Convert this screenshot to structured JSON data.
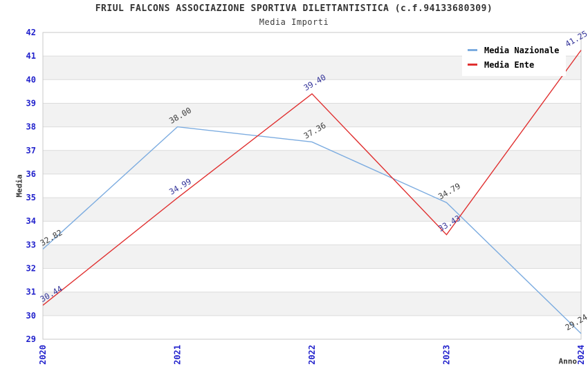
{
  "chart_data": {
    "type": "line",
    "title": "FRIUL FALCONS ASSOCIAZIONE SPORTIVA DILETTANTISTICA (c.f.94133680309)",
    "subtitle": "Media Importi",
    "xlabel": "Anno",
    "ylabel": "Media",
    "categories": [
      "2020",
      "2021",
      "2022",
      "2023",
      "2024"
    ],
    "yticks": [
      29,
      30,
      31,
      32,
      33,
      34,
      35,
      36,
      37,
      38,
      39,
      40,
      41,
      42
    ],
    "ylim": [
      29,
      42
    ],
    "grid": "horizontal-bands-alternating",
    "legend_position": "top-right",
    "series": [
      {
        "name": "Media Nazionale",
        "color": "#7CACE0",
        "label_color": "#3D3D3D",
        "values": [
          32.82,
          38.0,
          37.36,
          34.79,
          29.24
        ]
      },
      {
        "name": "Media Ente",
        "color": "#E03030",
        "label_color": "#333399",
        "values": [
          30.44,
          34.99,
          39.4,
          33.43,
          41.25
        ]
      }
    ],
    "colors": {
      "tick": "#2222CC",
      "title": "#333333",
      "band": "#F2F2F2",
      "grid": "#DCDCDC",
      "border": "#C9C9C9"
    }
  }
}
